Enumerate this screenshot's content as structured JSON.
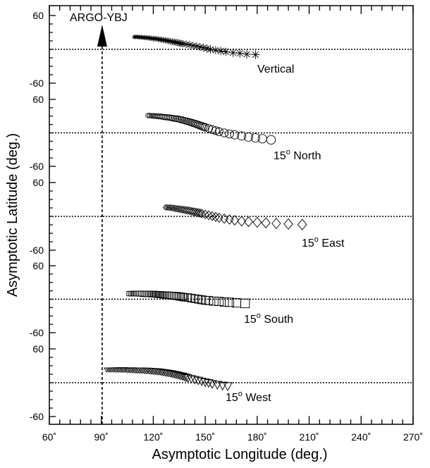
{
  "chart_data": {
    "type": "scatter",
    "title": "",
    "xlabel": "Asymptotic Longitude (deg.)",
    "ylabel": "Asymptotic Latitude (deg.)",
    "xlim": [
      60,
      270
    ],
    "x_ticks": [
      60,
      90,
      120,
      150,
      180,
      210,
      240,
      270
    ],
    "x_tick_labels": [
      "60˚",
      "90˚",
      "120˚",
      "150˚",
      "180˚",
      "210˚",
      "240˚",
      "270˚"
    ],
    "panel_ylim": [
      -60,
      60
    ],
    "panel_y_tick_labels": [
      "60",
      "-60"
    ],
    "grid": false,
    "station": {
      "label": "ARGO-YBJ",
      "longitude": 90.5
    },
    "series": [
      {
        "name": "Vertical",
        "label_main": "Vertical",
        "label_sup": "",
        "marker": "asterisk",
        "points": [
          [
            109,
            22
          ],
          [
            110,
            22
          ],
          [
            111,
            22
          ],
          [
            112,
            21.5
          ],
          [
            113,
            21.5
          ],
          [
            114,
            21
          ],
          [
            115,
            21
          ],
          [
            116,
            20.5
          ],
          [
            117,
            20.5
          ],
          [
            118,
            20
          ],
          [
            119,
            19.5
          ],
          [
            120,
            19
          ],
          [
            121,
            19
          ],
          [
            122,
            18.5
          ],
          [
            123,
            18
          ],
          [
            124,
            17.5
          ],
          [
            125,
            17
          ],
          [
            126,
            16.5
          ],
          [
            127,
            16
          ],
          [
            128,
            15.5
          ],
          [
            129,
            15
          ],
          [
            130,
            14
          ],
          [
            131,
            13.5
          ],
          [
            132,
            13
          ],
          [
            133,
            12.5
          ],
          [
            134,
            12
          ],
          [
            135,
            11
          ],
          [
            136,
            10.5
          ],
          [
            137,
            10
          ],
          [
            139,
            9
          ],
          [
            141,
            8
          ],
          [
            143,
            6.5
          ],
          [
            145,
            5.5
          ],
          [
            147,
            4
          ],
          [
            149,
            3
          ],
          [
            151,
            1.5
          ],
          [
            153,
            0
          ],
          [
            156,
            -1.5
          ],
          [
            159,
            -3
          ],
          [
            162,
            -4.5
          ],
          [
            166,
            -6
          ],
          [
            170,
            -7
          ],
          [
            174,
            -8.5
          ],
          [
            179,
            -9.5
          ]
        ]
      },
      {
        "name": "15° North",
        "label_main": "15",
        "label_sup": "o",
        "label_rest": " North",
        "marker": "circle",
        "points": [
          [
            117,
            31
          ],
          [
            118,
            31
          ],
          [
            119,
            30.5
          ],
          [
            120,
            30.5
          ],
          [
            121,
            30
          ],
          [
            122,
            30
          ],
          [
            123,
            29.5
          ],
          [
            124,
            29.5
          ],
          [
            125,
            29
          ],
          [
            126,
            28.5
          ],
          [
            127,
            28
          ],
          [
            128,
            28
          ],
          [
            129,
            27.5
          ],
          [
            130,
            27
          ],
          [
            131,
            26.5
          ],
          [
            132,
            26
          ],
          [
            133,
            25.5
          ],
          [
            134,
            25
          ],
          [
            135,
            24.5
          ],
          [
            136,
            23.5
          ],
          [
            137,
            23
          ],
          [
            138,
            22
          ],
          [
            139,
            21
          ],
          [
            140,
            20.5
          ],
          [
            141,
            19.5
          ],
          [
            142,
            18.5
          ],
          [
            143,
            17.5
          ],
          [
            144,
            16.5
          ],
          [
            145,
            15.5
          ],
          [
            146,
            14.5
          ],
          [
            147,
            13
          ],
          [
            148,
            12
          ],
          [
            149,
            11
          ],
          [
            150,
            10
          ],
          [
            152,
            8
          ],
          [
            154,
            6
          ],
          [
            156,
            4
          ],
          [
            158,
            2
          ],
          [
            161,
            0
          ],
          [
            164,
            -2
          ],
          [
            167,
            -3.5
          ],
          [
            171,
            -5.5
          ],
          [
            175,
            -7.5
          ],
          [
            179,
            -9
          ],
          [
            183,
            -10.5
          ],
          [
            188,
            -12.5
          ]
        ]
      },
      {
        "name": "15° East",
        "label_main": "15",
        "label_sup": "o",
        "label_rest": " East",
        "marker": "diamond",
        "points": [
          [
            127,
            16
          ],
          [
            128,
            16
          ],
          [
            129,
            15.5
          ],
          [
            130,
            15.5
          ],
          [
            131,
            15
          ],
          [
            132,
            14.5
          ],
          [
            133,
            14
          ],
          [
            134,
            13.5
          ],
          [
            135,
            13
          ],
          [
            136,
            12.5
          ],
          [
            137,
            12
          ],
          [
            138,
            11.5
          ],
          [
            139,
            11
          ],
          [
            140,
            10.5
          ],
          [
            141,
            10
          ],
          [
            142,
            9
          ],
          [
            143,
            8.5
          ],
          [
            144,
            8
          ],
          [
            145,
            7
          ],
          [
            146,
            6.5
          ],
          [
            147,
            6
          ],
          [
            148,
            5
          ],
          [
            150,
            3.5
          ],
          [
            152,
            2
          ],
          [
            154,
            0.5
          ],
          [
            156,
            -1
          ],
          [
            158,
            -2.5
          ],
          [
            161,
            -4
          ],
          [
            164,
            -5.5
          ],
          [
            167,
            -7
          ],
          [
            171,
            -8.5
          ],
          [
            175,
            -9.5
          ],
          [
            180,
            -10.5
          ],
          [
            185,
            -11.5
          ],
          [
            191,
            -12.5
          ],
          [
            198,
            -13.5
          ],
          [
            206,
            -14.5
          ]
        ]
      },
      {
        "name": "15° South",
        "label_main": "15",
        "label_sup": "o",
        "label_rest": " South",
        "marker": "square",
        "points": [
          [
            106,
            10
          ],
          [
            107,
            10
          ],
          [
            108,
            10
          ],
          [
            109,
            10
          ],
          [
            110,
            10
          ],
          [
            111,
            10
          ],
          [
            112,
            10
          ],
          [
            113,
            10
          ],
          [
            114,
            9.5
          ],
          [
            115,
            9.5
          ],
          [
            116,
            9.5
          ],
          [
            117,
            9.5
          ],
          [
            118,
            9.5
          ],
          [
            119,
            9
          ],
          [
            120,
            9
          ],
          [
            121,
            9
          ],
          [
            122,
            8.5
          ],
          [
            123,
            8.5
          ],
          [
            124,
            8
          ],
          [
            125,
            8
          ],
          [
            126,
            7.5
          ],
          [
            127,
            7.5
          ],
          [
            128,
            7
          ],
          [
            129,
            7
          ],
          [
            130,
            6.5
          ],
          [
            131,
            6.5
          ],
          [
            132,
            6
          ],
          [
            133,
            6
          ],
          [
            134,
            5.5
          ],
          [
            135,
            5
          ],
          [
            136,
            4.5
          ],
          [
            137,
            4
          ],
          [
            138,
            3.5
          ],
          [
            140,
            3
          ],
          [
            142,
            2
          ],
          [
            144,
            1
          ],
          [
            146,
            0
          ],
          [
            148,
            -1
          ],
          [
            150,
            -2
          ],
          [
            152,
            -2.5
          ],
          [
            155,
            -3.5
          ],
          [
            158,
            -4
          ],
          [
            161,
            -5
          ],
          [
            164,
            -5.5
          ],
          [
            168,
            -6.5
          ],
          [
            173,
            -7.5
          ]
        ]
      },
      {
        "name": "15° West",
        "label_main": "15",
        "label_sup": "o",
        "label_rest": " West",
        "marker": "triangle-down",
        "points": [
          [
            93,
            23
          ],
          [
            94,
            23
          ],
          [
            95,
            23
          ],
          [
            96,
            23
          ],
          [
            97,
            23
          ],
          [
            98,
            23
          ],
          [
            99,
            23
          ],
          [
            100,
            23
          ],
          [
            101,
            23
          ],
          [
            102,
            23
          ],
          [
            103,
            23
          ],
          [
            104,
            23
          ],
          [
            105,
            22.5
          ],
          [
            106,
            22.5
          ],
          [
            107,
            22.5
          ],
          [
            108,
            22.5
          ],
          [
            109,
            22.5
          ],
          [
            110,
            22
          ],
          [
            111,
            22
          ],
          [
            112,
            22
          ],
          [
            113,
            22
          ],
          [
            114,
            22
          ],
          [
            115,
            21.5
          ],
          [
            116,
            21.5
          ],
          [
            117,
            21.5
          ],
          [
            118,
            21
          ],
          [
            119,
            21
          ],
          [
            120,
            20.5
          ],
          [
            121,
            20.5
          ],
          [
            122,
            20
          ],
          [
            123,
            20
          ],
          [
            124,
            19.5
          ],
          [
            125,
            19
          ],
          [
            126,
            18.5
          ],
          [
            127,
            18
          ],
          [
            128,
            17.5
          ],
          [
            129,
            17
          ],
          [
            130,
            16.5
          ],
          [
            131,
            16
          ],
          [
            132,
            15
          ],
          [
            133,
            14.5
          ],
          [
            134,
            14
          ],
          [
            135,
            13
          ],
          [
            136,
            12
          ],
          [
            137,
            11.5
          ],
          [
            138,
            10.5
          ],
          [
            139,
            9.5
          ],
          [
            140,
            8.5
          ],
          [
            142,
            7
          ],
          [
            144,
            5.5
          ],
          [
            146,
            4
          ],
          [
            148,
            2.5
          ],
          [
            150,
            1
          ],
          [
            152,
            -0.5
          ],
          [
            154,
            -2
          ],
          [
            157,
            -3.5
          ],
          [
            160,
            -5
          ],
          [
            163,
            -6
          ]
        ]
      }
    ]
  }
}
